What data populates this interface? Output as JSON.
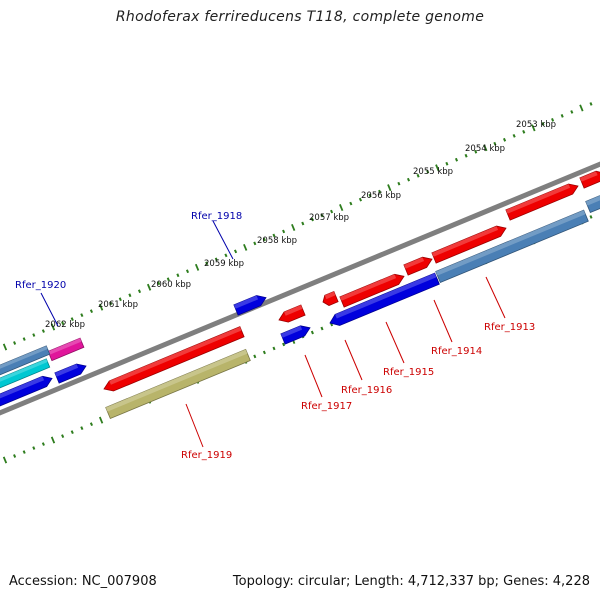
{
  "title": "Rhodoferax ferrireducens T118, complete genome",
  "footer": {
    "accession": "Accession: NC_007908",
    "topology": "Topology: circular; Length: 4,712,337 bp; Genes: 4,228"
  },
  "colors": {
    "backbone": "#888888",
    "tick": "#2e7d1e",
    "forward_gene": "#ee0000",
    "reverse_gene": "#0000dd",
    "rna_gene": "#4a7fb5",
    "cyan_gene": "#00c8d2",
    "magenta_gene": "#e0159b",
    "olive_gene": "#b8b46a",
    "label_red": "#cc0000",
    "label_blue": "#0000aa"
  },
  "kbp_labels": [
    "2053 kbp",
    "2054 kbp",
    "2055 kbp",
    "2056 kbp",
    "2057 kbp",
    "2058 kbp",
    "2059 kbp",
    "2060 kbp",
    "2061 kbp",
    "2062 kbp"
  ],
  "gene_labels": [
    {
      "text": "Rfer_1913",
      "color": "red"
    },
    {
      "text": "Rfer_1914",
      "color": "red"
    },
    {
      "text": "Rfer_1915",
      "color": "red"
    },
    {
      "text": "Rfer_1916",
      "color": "red"
    },
    {
      "text": "Rfer_1917",
      "color": "red"
    },
    {
      "text": "Rfer_1918",
      "color": "blue"
    },
    {
      "text": "Rfer_1919",
      "color": "red"
    },
    {
      "text": "Rfer_1920",
      "color": "blue"
    }
  ]
}
